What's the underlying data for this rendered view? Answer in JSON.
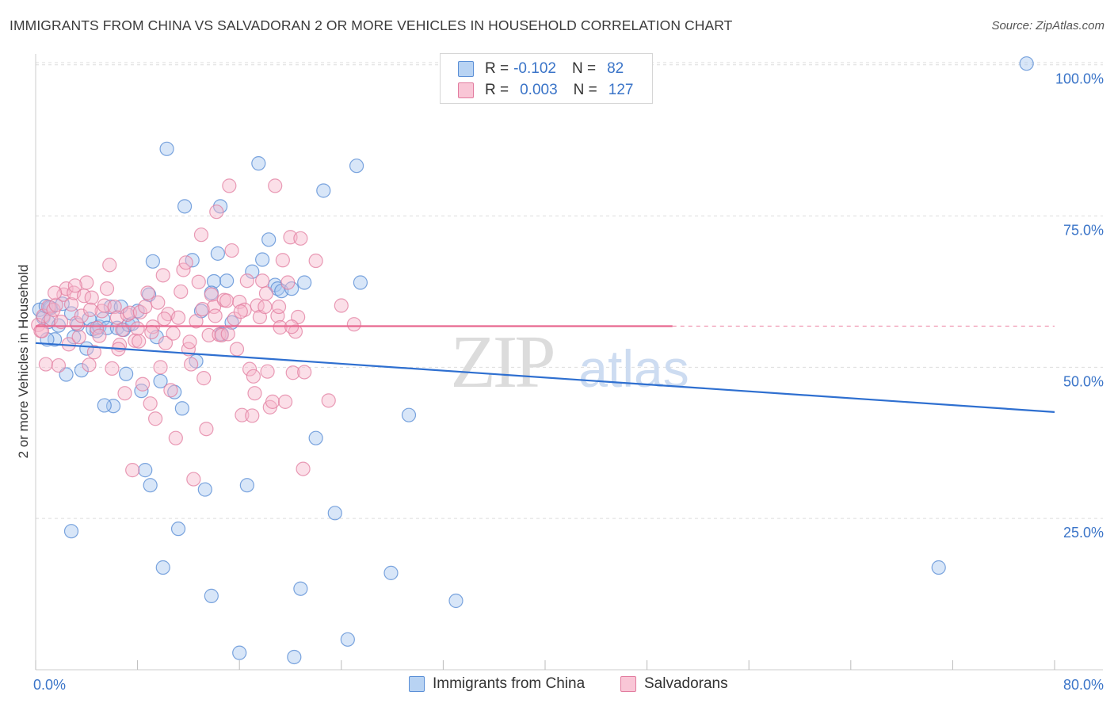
{
  "title": "IMMIGRANTS FROM CHINA VS SALVADORAN 2 OR MORE VEHICLES IN HOUSEHOLD CORRELATION CHART",
  "source": "Source: ZipAtlas.com",
  "watermark": {
    "zip": "ZIP",
    "atlas": "atlas"
  },
  "legend": {
    "series1": {
      "r_label": "R =",
      "r_value": "-0.102",
      "n_label": "N =",
      "n_value": "82"
    },
    "series2": {
      "r_label": "R =",
      "r_value": "0.003",
      "n_label": "N =",
      "n_value": "127"
    }
  },
  "colors": {
    "blue_fill": "#a9c8f0",
    "blue_stroke": "#5b8fd6",
    "blue_line": "#2e6fd0",
    "pink_fill": "#f6b8cc",
    "pink_stroke": "#e27c9f",
    "pink_line": "#e8688f",
    "axis_label": "#3a74c8",
    "grid": "#dddddd"
  },
  "chart_data": {
    "type": "scatter",
    "title": "IMMIGRANTS FROM CHINA VS SALVADORAN 2 OR MORE VEHICLES IN HOUSEHOLD CORRELATION CHART",
    "xlabel": "",
    "ylabel": "2 or more Vehicles in Household",
    "xlim": [
      0,
      80
    ],
    "ylim": [
      0,
      105
    ],
    "x_tick_labels": [
      "0.0%",
      "80.0%"
    ],
    "y_ticks": [
      25,
      50,
      75,
      100
    ],
    "y_tick_labels": [
      "25.0%",
      "50.0%",
      "75.0%",
      "100.0%"
    ],
    "grid": true,
    "legend_position": "top-center",
    "series": [
      {
        "name": "Immigrants from China",
        "trend": {
          "x": [
            0,
            80
          ],
          "y": [
            54.0,
            42.6
          ]
        },
        "points": [
          [
            0.3,
            59.5
          ],
          [
            0.6,
            58.2
          ],
          [
            0.8,
            60.1
          ],
          [
            1.0,
            57.5
          ],
          [
            1.2,
            59.8
          ],
          [
            1.5,
            54.6
          ],
          [
            1.8,
            56.9
          ],
          [
            2.1,
            60.5
          ],
          [
            2.4,
            48.8
          ],
          [
            2.8,
            58.9
          ],
          [
            3.0,
            55.0
          ],
          [
            3.3,
            57.0
          ],
          [
            3.6,
            49.5
          ],
          [
            4.0,
            53.1
          ],
          [
            4.2,
            58.0
          ],
          [
            4.5,
            56.3
          ],
          [
            4.8,
            56.0
          ],
          [
            5.0,
            56.7
          ],
          [
            5.3,
            58.0
          ],
          [
            5.6,
            56.5
          ],
          [
            5.9,
            60.0
          ],
          [
            6.1,
            43.6
          ],
          [
            6.4,
            56.5
          ],
          [
            6.7,
            60.0
          ],
          [
            6.9,
            56.2
          ],
          [
            7.1,
            48.9
          ],
          [
            7.3,
            57.0
          ],
          [
            7.6,
            57.2
          ],
          [
            8.0,
            59.3
          ],
          [
            8.3,
            46.1
          ],
          [
            8.6,
            33.0
          ],
          [
            8.9,
            62.0
          ],
          [
            9.2,
            67.5
          ],
          [
            9.5,
            55.0
          ],
          [
            9.8,
            47.7
          ],
          [
            10.3,
            86.1
          ],
          [
            10.9,
            45.9
          ],
          [
            11.2,
            23.3
          ],
          [
            11.7,
            76.6
          ],
          [
            12.3,
            67.7
          ],
          [
            12.6,
            51.0
          ],
          [
            13.0,
            59.3
          ],
          [
            13.3,
            29.8
          ],
          [
            13.8,
            12.2
          ],
          [
            14.0,
            64.2
          ],
          [
            14.3,
            68.8
          ],
          [
            14.6,
            55.5
          ],
          [
            15.0,
            64.3
          ],
          [
            15.4,
            57.4
          ],
          [
            16.0,
            2.8
          ],
          [
            16.6,
            30.5
          ],
          [
            17.0,
            65.8
          ],
          [
            17.5,
            83.7
          ],
          [
            17.8,
            67.8
          ],
          [
            18.3,
            71.1
          ],
          [
            18.8,
            63.6
          ],
          [
            19.0,
            63.0
          ],
          [
            19.3,
            62.6
          ],
          [
            20.1,
            63.0
          ],
          [
            20.8,
            13.4
          ],
          [
            21.1,
            64.0
          ],
          [
            22.0,
            38.3
          ],
          [
            22.6,
            79.2
          ],
          [
            23.5,
            25.9
          ],
          [
            24.5,
            5.0
          ],
          [
            25.2,
            83.3
          ],
          [
            25.5,
            64.0
          ],
          [
            27.9,
            16.0
          ],
          [
            29.3,
            42.1
          ],
          [
            33.0,
            11.4
          ],
          [
            70.9,
            16.9
          ],
          [
            77.8,
            100.2
          ],
          [
            1.1,
            59.9
          ],
          [
            2.8,
            22.9
          ],
          [
            5.4,
            43.7
          ],
          [
            9.0,
            30.5
          ],
          [
            10.0,
            16.9
          ],
          [
            11.5,
            43.2
          ],
          [
            13.8,
            62.3
          ],
          [
            20.3,
            2.1
          ],
          [
            14.5,
            76.6
          ],
          [
            0.9,
            54.6
          ]
        ]
      },
      {
        "name": "Salvadorans",
        "trend": {
          "x": [
            0,
            50
          ],
          "y": [
            56.8,
            56.8
          ]
        },
        "trend_dashed": {
          "x": [
            50,
            80
          ],
          "y": [
            56.8,
            56.8
          ]
        },
        "points": [
          [
            0.2,
            57.0
          ],
          [
            0.4,
            56.0
          ],
          [
            0.6,
            58.5
          ],
          [
            0.8,
            50.5
          ],
          [
            1.0,
            60.0
          ],
          [
            1.2,
            58.0
          ],
          [
            1.4,
            59.5
          ],
          [
            1.6,
            60.3
          ],
          [
            1.8,
            50.3
          ],
          [
            2.0,
            57.5
          ],
          [
            2.2,
            62.0
          ],
          [
            2.4,
            63.0
          ],
          [
            2.6,
            53.8
          ],
          [
            2.8,
            60.4
          ],
          [
            3.0,
            62.3
          ],
          [
            3.2,
            57.3
          ],
          [
            3.4,
            55.0
          ],
          [
            3.6,
            58.5
          ],
          [
            3.8,
            61.8
          ],
          [
            4.0,
            64.0
          ],
          [
            4.2,
            50.4
          ],
          [
            4.4,
            61.5
          ],
          [
            4.6,
            52.5
          ],
          [
            4.8,
            56.5
          ],
          [
            5.0,
            55.2
          ],
          [
            5.2,
            59.3
          ],
          [
            5.4,
            60.2
          ],
          [
            5.6,
            63.0
          ],
          [
            5.8,
            66.9
          ],
          [
            6.0,
            49.8
          ],
          [
            6.2,
            60.0
          ],
          [
            6.4,
            58.2
          ],
          [
            6.6,
            53.7
          ],
          [
            6.8,
            56.2
          ],
          [
            7.0,
            45.7
          ],
          [
            7.2,
            58.7
          ],
          [
            7.4,
            59.0
          ],
          [
            7.6,
            33.0
          ],
          [
            7.8,
            54.4
          ],
          [
            8.0,
            56.4
          ],
          [
            8.2,
            59.1
          ],
          [
            8.4,
            47.2
          ],
          [
            8.6,
            60.0
          ],
          [
            8.8,
            62.3
          ],
          [
            9.0,
            44.0
          ],
          [
            9.2,
            56.7
          ],
          [
            9.4,
            41.5
          ],
          [
            9.6,
            60.7
          ],
          [
            9.8,
            50.0
          ],
          [
            10.0,
            65.2
          ],
          [
            10.2,
            54.0
          ],
          [
            10.4,
            58.8
          ],
          [
            10.6,
            46.2
          ],
          [
            10.8,
            55.6
          ],
          [
            11.0,
            38.3
          ],
          [
            11.2,
            58.2
          ],
          [
            11.4,
            62.5
          ],
          [
            11.6,
            66.1
          ],
          [
            11.8,
            67.3
          ],
          [
            12.0,
            53.0
          ],
          [
            12.2,
            50.5
          ],
          [
            12.4,
            31.5
          ],
          [
            12.6,
            57.6
          ],
          [
            12.8,
            64.1
          ],
          [
            13.0,
            71.9
          ],
          [
            13.2,
            48.2
          ],
          [
            13.4,
            39.8
          ],
          [
            13.6,
            55.3
          ],
          [
            13.8,
            62.0
          ],
          [
            14.0,
            60.0
          ],
          [
            14.2,
            75.7
          ],
          [
            14.4,
            55.4
          ],
          [
            14.6,
            55.3
          ],
          [
            14.8,
            61.1
          ],
          [
            15.0,
            61.0
          ],
          [
            15.2,
            80.0
          ],
          [
            15.4,
            69.3
          ],
          [
            15.6,
            58.0
          ],
          [
            15.8,
            53.0
          ],
          [
            16.0,
            60.8
          ],
          [
            16.2,
            42.1
          ],
          [
            16.4,
            59.5
          ],
          [
            16.6,
            64.3
          ],
          [
            16.8,
            49.7
          ],
          [
            17.0,
            42.0
          ],
          [
            17.2,
            45.7
          ],
          [
            17.4,
            60.2
          ],
          [
            17.6,
            58.3
          ],
          [
            17.8,
            64.3
          ],
          [
            18.0,
            60.0
          ],
          [
            18.2,
            49.3
          ],
          [
            18.4,
            43.4
          ],
          [
            18.6,
            44.3
          ],
          [
            18.8,
            80.0
          ],
          [
            19.0,
            58.5
          ],
          [
            19.2,
            56.6
          ],
          [
            19.4,
            67.7
          ],
          [
            19.6,
            44.3
          ],
          [
            19.8,
            64.0
          ],
          [
            20.0,
            71.5
          ],
          [
            20.2,
            49.1
          ],
          [
            20.4,
            55.9
          ],
          [
            20.6,
            58.3
          ],
          [
            20.8,
            71.3
          ],
          [
            21.0,
            33.2
          ],
          [
            22.0,
            67.6
          ],
          [
            23.0,
            44.5
          ],
          [
            24.0,
            60.2
          ],
          [
            25.0,
            57.1
          ],
          [
            0.5,
            56.0
          ],
          [
            1.5,
            62.3
          ],
          [
            3.1,
            63.5
          ],
          [
            4.3,
            59.5
          ],
          [
            6.5,
            53.0
          ],
          [
            8.1,
            54.3
          ],
          [
            9.1,
            55.8
          ],
          [
            10.1,
            58.0
          ],
          [
            12.1,
            54.2
          ],
          [
            13.1,
            59.6
          ],
          [
            14.1,
            58.5
          ],
          [
            15.1,
            55.5
          ],
          [
            16.1,
            59.2
          ],
          [
            17.1,
            48.5
          ],
          [
            18.1,
            62.2
          ],
          [
            19.1,
            60.0
          ],
          [
            20.1,
            56.7
          ],
          [
            21.1,
            49.2
          ]
        ]
      }
    ]
  },
  "bottom_legend": {
    "series1": "Immigrants from China",
    "series2": "Salvadorans"
  }
}
